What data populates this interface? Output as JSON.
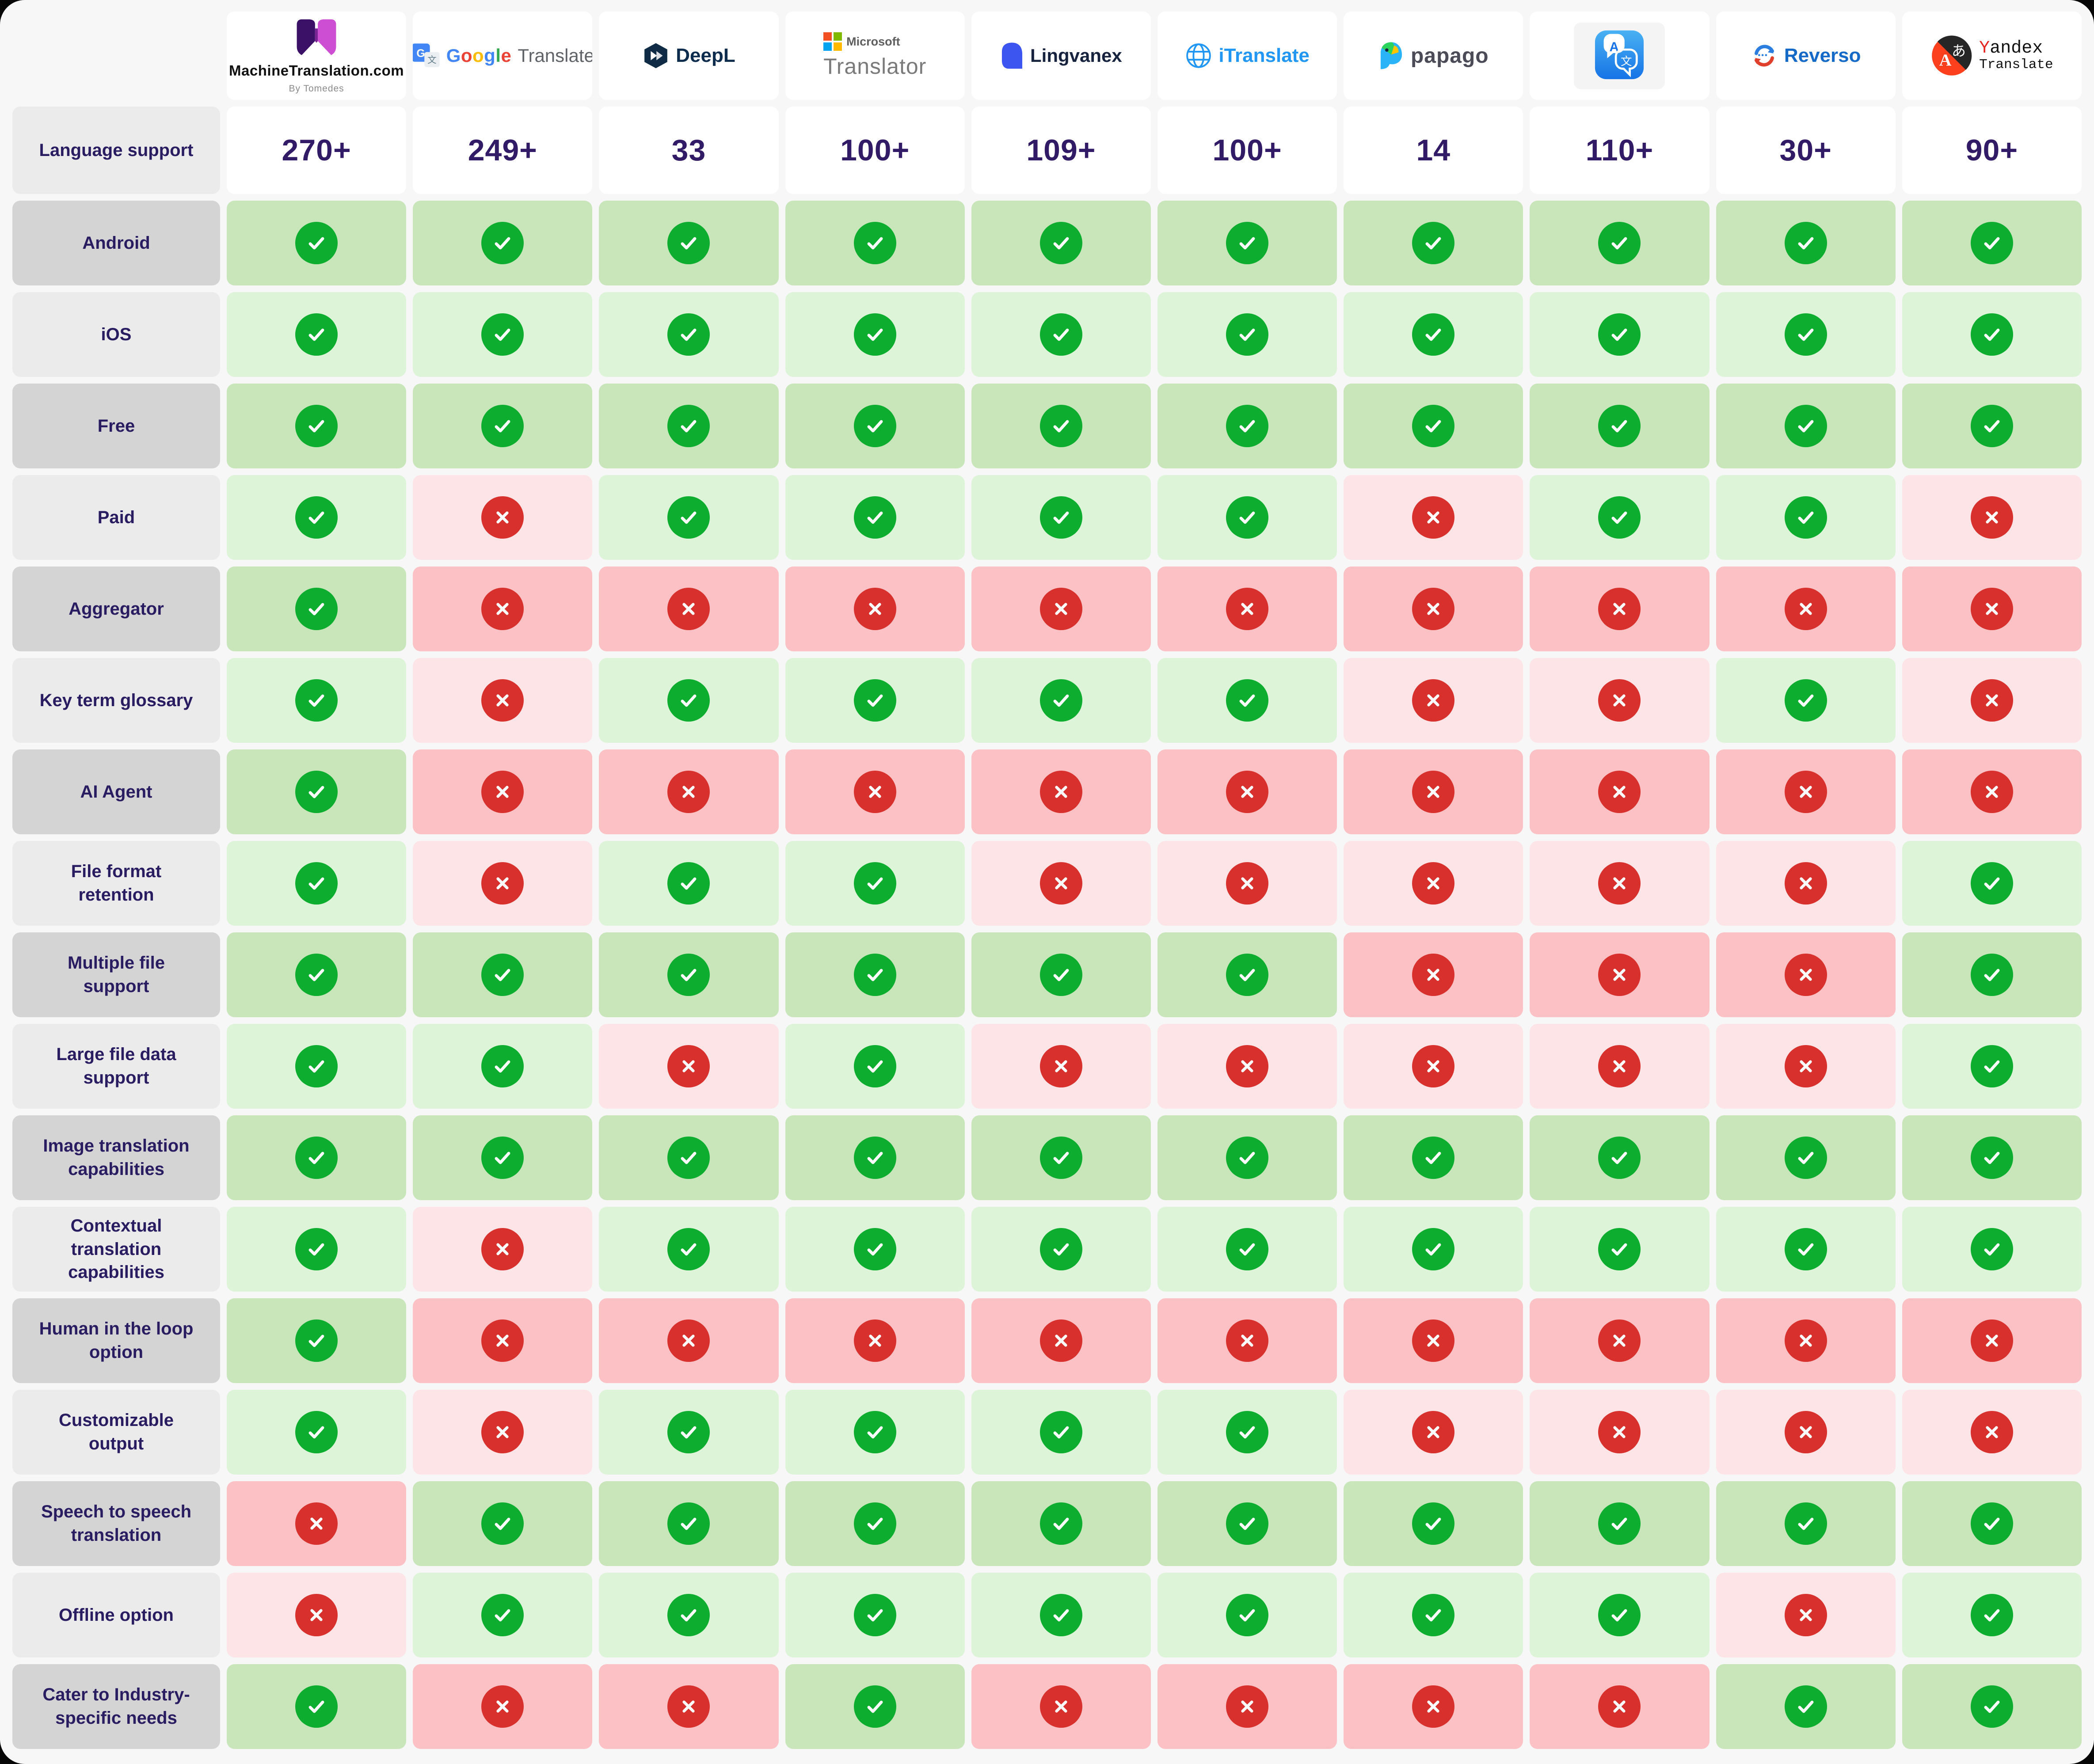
{
  "page": {
    "surface_color": "#f7f7f8",
    "backdrop_color": "#070707"
  },
  "colors": {
    "check_circle": "#0dad2f",
    "cross_circle": "#d8302c",
    "cell_green_light": "#def4d8",
    "cell_green_dark": "#c9e5ba",
    "cell_pink_light": "#fde4e7",
    "cell_pink_dark": "#fbc1c4",
    "label_light": "#ebebeb",
    "label_dark": "#d4d4d4",
    "label_text": "#2a1c61",
    "number_text": "#321b66",
    "google_letters": [
      "#4285F4",
      "#EA4335",
      "#FBBC05",
      "#4285F4",
      "#34A853",
      "#EA4335"
    ],
    "microsoft_squares": [
      "#f25022",
      "#7fba00",
      "#00a4ef",
      "#ffb900"
    ]
  },
  "header": {
    "columns": [
      {
        "id": "machinetranslation",
        "name": "MachineTranslation.com",
        "subtitle": "By Tomedes"
      },
      {
        "id": "google",
        "word": "Google",
        "rest": "Translate"
      },
      {
        "id": "deepl",
        "name": "DeepL"
      },
      {
        "id": "microsoft",
        "name_top": "Microsoft",
        "name": "Translator"
      },
      {
        "id": "lingvanex",
        "name": "Lingvanex"
      },
      {
        "id": "itranslate",
        "name": "iTranslate"
      },
      {
        "id": "papago",
        "name": "papago"
      },
      {
        "id": "apple-translate",
        "name": ""
      },
      {
        "id": "reverso",
        "name": "Reverso"
      },
      {
        "id": "yandex",
        "name_top": "Yandex",
        "name": "Translate"
      }
    ]
  },
  "chart_data": {
    "type": "table",
    "columns": [
      "MachineTranslation.com",
      "Google Translate",
      "DeepL",
      "Microsoft Translator",
      "Lingvanex",
      "iTranslate",
      "papago",
      "Apple Translate",
      "Reverso",
      "Yandex Translate"
    ],
    "language_support": {
      "label": "Language support",
      "values": [
        "270+",
        "249+",
        "33",
        "100+",
        "109+",
        "100+",
        "14",
        "110+",
        "30+",
        "90+"
      ]
    },
    "rows": [
      {
        "label": "Android",
        "values": [
          true,
          true,
          true,
          true,
          true,
          true,
          true,
          true,
          true,
          true
        ]
      },
      {
        "label": "iOS",
        "values": [
          true,
          true,
          true,
          true,
          true,
          true,
          true,
          true,
          true,
          true
        ]
      },
      {
        "label": "Free",
        "values": [
          true,
          true,
          true,
          true,
          true,
          true,
          true,
          true,
          true,
          true
        ]
      },
      {
        "label": "Paid",
        "values": [
          true,
          false,
          true,
          true,
          true,
          true,
          false,
          true,
          true,
          false
        ]
      },
      {
        "label": "Aggregator",
        "values": [
          true,
          false,
          false,
          false,
          false,
          false,
          false,
          false,
          false,
          false
        ]
      },
      {
        "label": "Key term glossary",
        "values": [
          true,
          false,
          true,
          true,
          true,
          true,
          false,
          false,
          true,
          false
        ]
      },
      {
        "label": "AI Agent",
        "values": [
          true,
          false,
          false,
          false,
          false,
          false,
          false,
          false,
          false,
          false
        ]
      },
      {
        "label": "File format retention",
        "values": [
          true,
          false,
          true,
          true,
          false,
          false,
          false,
          false,
          false,
          true
        ]
      },
      {
        "label": "Multiple file support",
        "values": [
          true,
          true,
          true,
          true,
          true,
          true,
          false,
          false,
          false,
          true
        ]
      },
      {
        "label": "Large file data support",
        "values": [
          true,
          true,
          false,
          true,
          false,
          false,
          false,
          false,
          false,
          true
        ]
      },
      {
        "label": "Image translation capabilities",
        "values": [
          true,
          true,
          true,
          true,
          true,
          true,
          true,
          true,
          true,
          true
        ]
      },
      {
        "label": "Contextual translation capabilities",
        "values": [
          true,
          false,
          true,
          true,
          true,
          true,
          true,
          true,
          true,
          true
        ]
      },
      {
        "label": "Human in the loop option",
        "values": [
          true,
          false,
          false,
          false,
          false,
          false,
          false,
          false,
          false,
          false
        ]
      },
      {
        "label": "Customizable output",
        "values": [
          true,
          false,
          true,
          true,
          true,
          true,
          false,
          false,
          false,
          false
        ]
      },
      {
        "label": "Speech to speech translation",
        "values": [
          false,
          true,
          true,
          true,
          true,
          true,
          true,
          true,
          true,
          true
        ]
      },
      {
        "label": "Offline option",
        "values": [
          false,
          true,
          true,
          true,
          true,
          true,
          true,
          true,
          false,
          true
        ]
      },
      {
        "label": "Cater to Industry-specific needs",
        "values": [
          true,
          false,
          false,
          true,
          false,
          false,
          false,
          false,
          true,
          true
        ]
      }
    ]
  },
  "icons": {
    "check": "check-icon",
    "cross": "cross-icon",
    "logos": [
      "machinetranslation-logo",
      "google-translate-logo",
      "deepl-logo",
      "microsoft-translator-logo",
      "lingvanex-logo",
      "itranslate-logo",
      "papago-logo",
      "apple-translate-logo",
      "reverso-logo",
      "yandex-translate-logo"
    ]
  }
}
